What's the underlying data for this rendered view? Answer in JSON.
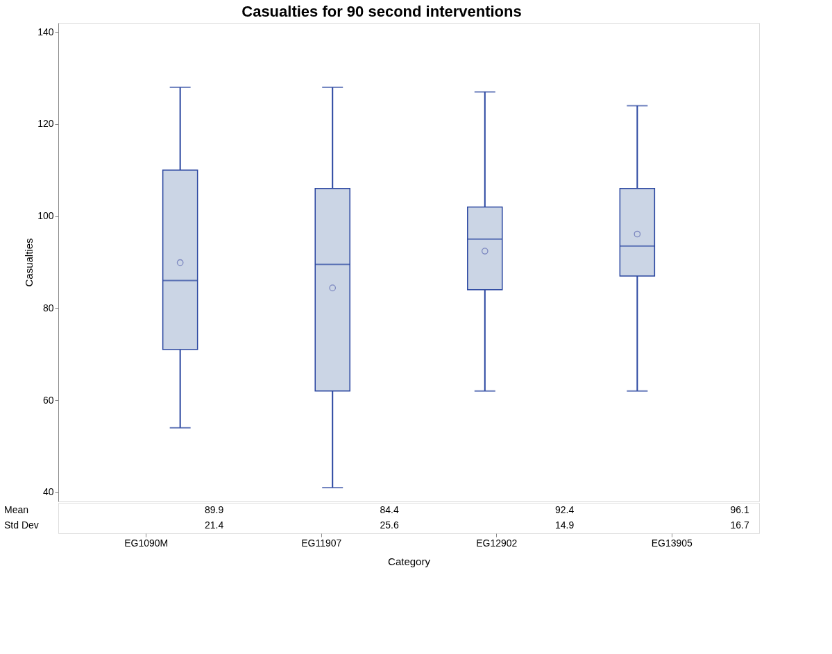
{
  "chart_data": {
    "type": "box",
    "title": "Casualties for 90 second interventions",
    "xlabel": "Category",
    "ylabel": "Casualties",
    "categories": [
      "EG1090M",
      "EG11907",
      "EG12902",
      "EG13905"
    ],
    "boxes": [
      {
        "low": 54,
        "q1": 71,
        "median": 86,
        "q3": 110,
        "high": 128,
        "mean": 89.9
      },
      {
        "low": 41,
        "q1": 62,
        "median": 89.5,
        "q3": 106,
        "high": 128,
        "mean": 84.4
      },
      {
        "low": 62,
        "q1": 84,
        "median": 95,
        "q3": 102,
        "high": 127,
        "mean": 92.4
      },
      {
        "low": 62,
        "q1": 87,
        "median": 93.5,
        "q3": 106,
        "high": 124,
        "mean": 96.1
      }
    ],
    "color": "#2a46a0",
    "ylim": [
      38,
      142
    ],
    "yticks": [
      40,
      60,
      80,
      100,
      120,
      140
    ],
    "grid": false,
    "annotations": [
      "Mean",
      "89.9",
      "84.4",
      "92.4",
      "96.1",
      "Std Dev",
      "21.4",
      "25.6",
      "14.9",
      "16.7"
    ]
  }
}
